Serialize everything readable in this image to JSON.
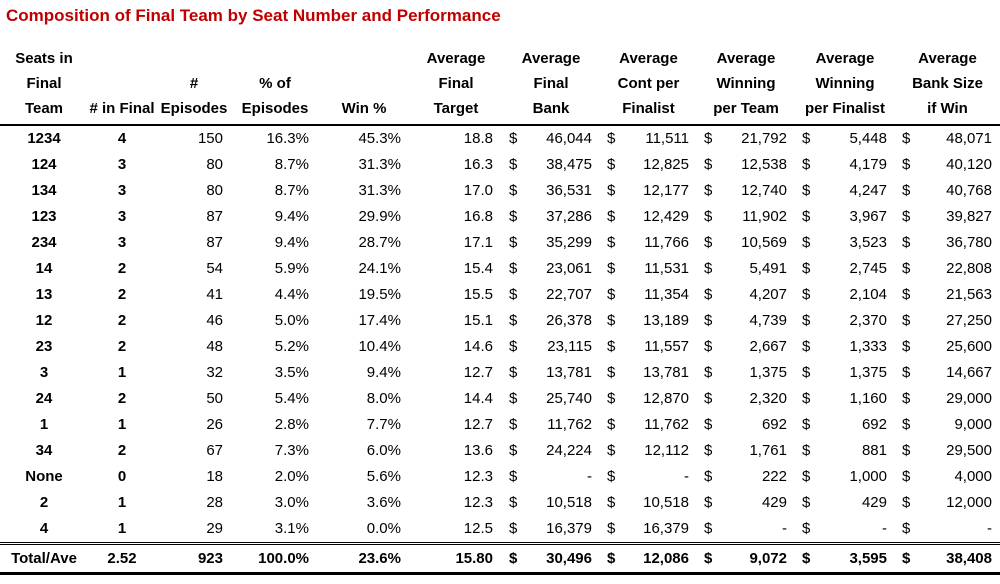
{
  "title": {
    "text": "Composition of Final Team by Seat Number and Performance",
    "color": "#C00000"
  },
  "chart_data": {
    "type": "table",
    "title": "Composition of Final Team by Seat Number and Performance",
    "currency_symbol": "$",
    "null_value": "-",
    "columns": [
      {
        "id": "seats-in-final-team",
        "lines": [
          "Seats in",
          "Final",
          "Team"
        ]
      },
      {
        "id": "num-in-final",
        "lines": [
          "# in Final"
        ]
      },
      {
        "id": "num-episodes",
        "lines": [
          "#",
          "Episodes"
        ]
      },
      {
        "id": "pct-of-episodes",
        "lines": [
          "% of",
          "Episodes"
        ]
      },
      {
        "id": "win-pct",
        "lines": [
          "Win %"
        ]
      },
      {
        "id": "average-final-target",
        "lines": [
          "Average",
          "Final",
          "Target"
        ]
      },
      {
        "id": "average-final-bank",
        "lines": [
          "Average",
          "Final",
          "Bank"
        ]
      },
      {
        "id": "average-cont-per-finalist",
        "lines": [
          "Average",
          "Cont per",
          "Finalist"
        ]
      },
      {
        "id": "average-winning-per-team",
        "lines": [
          "Average",
          "Winning",
          "per Team"
        ]
      },
      {
        "id": "average-winning-per-finalist",
        "lines": [
          "Average",
          "Winning",
          "per Finalist"
        ]
      },
      {
        "id": "average-bank-size-if-win",
        "lines": [
          "Average",
          "Bank Size",
          "if Win"
        ]
      }
    ],
    "currency_columns": [
      6,
      7,
      8,
      9,
      10
    ],
    "rows": [
      [
        "1234",
        "4",
        "150",
        "16.3%",
        "45.3%",
        "18.8",
        "46,044",
        "11,511",
        "21,792",
        "5,448",
        "48,071"
      ],
      [
        "124",
        "3",
        "80",
        "8.7%",
        "31.3%",
        "16.3",
        "38,475",
        "12,825",
        "12,538",
        "4,179",
        "40,120"
      ],
      [
        "134",
        "3",
        "80",
        "8.7%",
        "31.3%",
        "17.0",
        "36,531",
        "12,177",
        "12,740",
        "4,247",
        "40,768"
      ],
      [
        "123",
        "3",
        "87",
        "9.4%",
        "29.9%",
        "16.8",
        "37,286",
        "12,429",
        "11,902",
        "3,967",
        "39,827"
      ],
      [
        "234",
        "3",
        "87",
        "9.4%",
        "28.7%",
        "17.1",
        "35,299",
        "11,766",
        "10,569",
        "3,523",
        "36,780"
      ],
      [
        "14",
        "2",
        "54",
        "5.9%",
        "24.1%",
        "15.4",
        "23,061",
        "11,531",
        "5,491",
        "2,745",
        "22,808"
      ],
      [
        "13",
        "2",
        "41",
        "4.4%",
        "19.5%",
        "15.5",
        "22,707",
        "11,354",
        "4,207",
        "2,104",
        "21,563"
      ],
      [
        "12",
        "2",
        "46",
        "5.0%",
        "17.4%",
        "15.1",
        "26,378",
        "13,189",
        "4,739",
        "2,370",
        "27,250"
      ],
      [
        "23",
        "2",
        "48",
        "5.2%",
        "10.4%",
        "14.6",
        "23,115",
        "11,557",
        "2,667",
        "1,333",
        "25,600"
      ],
      [
        "3",
        "1",
        "32",
        "3.5%",
        "9.4%",
        "12.7",
        "13,781",
        "13,781",
        "1,375",
        "1,375",
        "14,667"
      ],
      [
        "24",
        "2",
        "50",
        "5.4%",
        "8.0%",
        "14.4",
        "25,740",
        "12,870",
        "2,320",
        "1,160",
        "29,000"
      ],
      [
        "1",
        "1",
        "26",
        "2.8%",
        "7.7%",
        "12.7",
        "11,762",
        "11,762",
        "692",
        "692",
        "9,000"
      ],
      [
        "34",
        "2",
        "67",
        "7.3%",
        "6.0%",
        "13.6",
        "24,224",
        "12,112",
        "1,761",
        "881",
        "29,500"
      ],
      [
        "None",
        "0",
        "18",
        "2.0%",
        "5.6%",
        "12.3",
        "-",
        "-",
        "222",
        "1,000",
        "4,000"
      ],
      [
        "2",
        "1",
        "28",
        "3.0%",
        "3.6%",
        "12.3",
        "10,518",
        "10,518",
        "429",
        "429",
        "12,000"
      ],
      [
        "4",
        "1",
        "29",
        "3.1%",
        "0.0%",
        "12.5",
        "16,379",
        "16,379",
        "-",
        "-",
        "-"
      ]
    ],
    "total_row": [
      "Total/Ave",
      "2.52",
      "923",
      "100.0%",
      "23.6%",
      "15.80",
      "30,496",
      "12,086",
      "9,072",
      "3,595",
      "38,408"
    ]
  }
}
